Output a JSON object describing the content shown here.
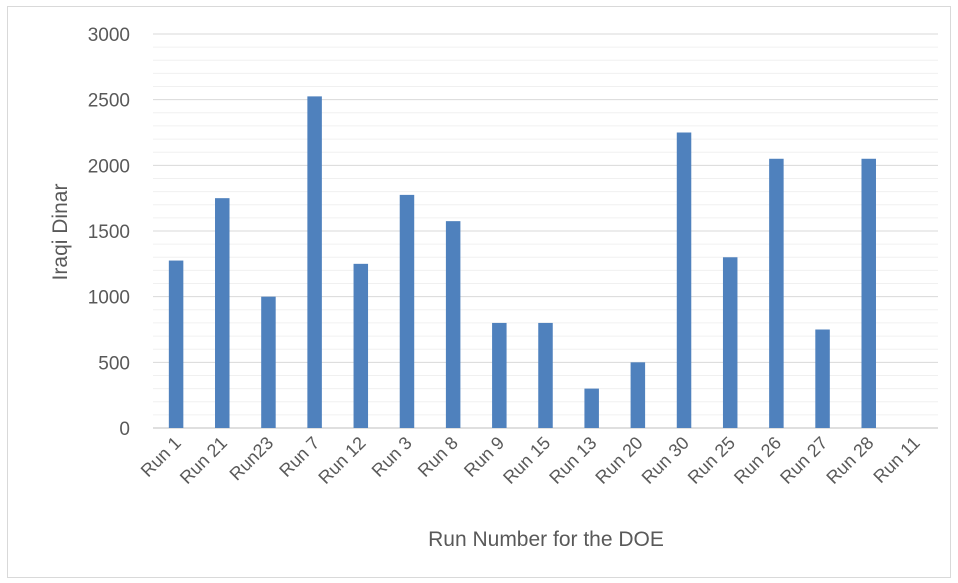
{
  "chart_data": {
    "type": "bar",
    "categories": [
      "Run 1",
      "Run 21",
      "Run23",
      "Run 7",
      "Run 12",
      "Run 3",
      "Run 8",
      "Run 9",
      "Run 15",
      "Run 13",
      "Run 20",
      "Run 30",
      "Run 25",
      "Run 26",
      "Run 27",
      "Run 28",
      "Run 11"
    ],
    "values": [
      1275,
      1750,
      1000,
      2525,
      1250,
      1775,
      1575,
      800,
      800,
      300,
      500,
      2250,
      1300,
      2050,
      750,
      2050,
      0
    ],
    "title": "",
    "xlabel": "Run Number for the DOE",
    "ylabel": "Iraqi Dinar",
    "ylim": [
      0,
      3000
    ],
    "yticks": [
      0,
      500,
      1000,
      1500,
      2000,
      2500,
      3000
    ],
    "minor_gridlines": true,
    "legend": "none",
    "bar_color": "#4f81bd",
    "gridline_color": "#d9d9d9"
  }
}
